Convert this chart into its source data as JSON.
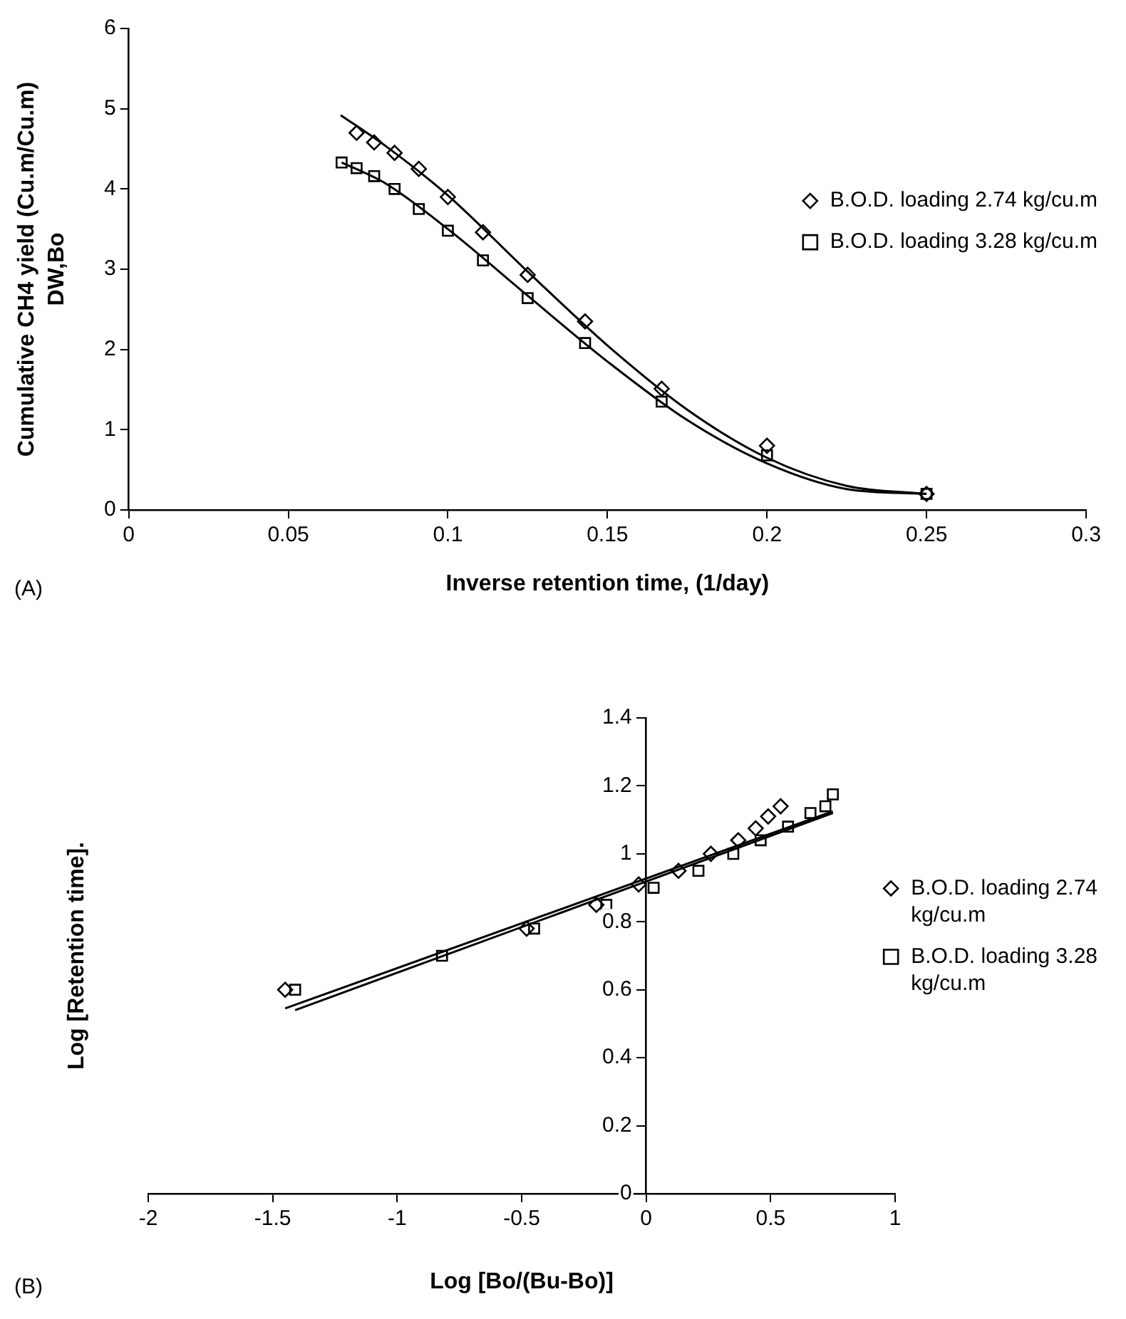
{
  "chart_data": [
    {
      "type": "scatter",
      "xlabel": "Inverse retention time, (1/day)",
      "ylabel": "Cumulative CH4 yield (Cu.m/Cu.m)\nDW,Bo",
      "annotations": [
        "(A)"
      ],
      "xlim": [
        0,
        0.3
      ],
      "xticks": [
        0,
        0.05,
        0.1,
        0.15,
        0.2,
        0.25,
        0.3
      ],
      "ylim": [
        0,
        6
      ],
      "yticks": [
        0,
        1,
        2,
        3,
        4,
        5,
        6
      ],
      "grid": false,
      "legend": "right",
      "series": [
        {
          "name": "B.O.D. loading 2.74 kg/cu.m",
          "marker": "diamond",
          "color": "#000000",
          "x": [
            0.0714,
            0.0769,
            0.0833,
            0.0909,
            0.1,
            0.111,
            0.125,
            0.143,
            0.167,
            0.2,
            0.25
          ],
          "values": [
            4.7,
            4.58,
            4.45,
            4.25,
            3.9,
            3.46,
            2.93,
            2.35,
            1.51,
            0.8,
            0.2
          ]
        },
        {
          "name": "B.O.D. loading 3.28 kg/cu.m",
          "marker": "square",
          "color": "#000000",
          "x": [
            0.0667,
            0.0714,
            0.0769,
            0.0833,
            0.0909,
            0.1,
            0.111,
            0.125,
            0.143,
            0.167,
            0.2,
            0.25
          ],
          "values": [
            4.33,
            4.26,
            4.16,
            4.0,
            3.75,
            3.48,
            3.11,
            2.64,
            2.08,
            1.35,
            0.68,
            0.2
          ]
        },
        {
          "type": "line",
          "marker": "none",
          "color": "#000000",
          "x": [
            0.0664,
            0.08,
            0.1,
            0.125,
            0.15,
            0.175,
            0.2,
            0.225,
            0.25
          ],
          "values": [
            4.92,
            4.55,
            3.92,
            2.97,
            2.05,
            1.25,
            0.65,
            0.3,
            0.2
          ]
        },
        {
          "type": "line",
          "marker": "none",
          "color": "#000000",
          "x": [
            0.0667,
            0.08,
            0.1,
            0.125,
            0.15,
            0.175,
            0.2,
            0.225,
            0.25
          ],
          "values": [
            4.33,
            4.08,
            3.5,
            2.67,
            1.85,
            1.12,
            0.58,
            0.26,
            0.2
          ]
        }
      ]
    },
    {
      "type": "scatter",
      "xlabel": "Log [Bo/(Bu-Bo)]",
      "ylabel": "Log [Retention time].",
      "annotations": [
        "(B)"
      ],
      "xlim": [
        -2,
        1
      ],
      "xticks": [
        -2,
        -1.5,
        -1,
        -0.5,
        0,
        0.5,
        1
      ],
      "ylim": [
        0,
        1.4
      ],
      "yticks": [
        0,
        0.2,
        0.4,
        0.6,
        0.8,
        1,
        1.2,
        1.4
      ],
      "grid": false,
      "legend": "right",
      "series": [
        {
          "name": "B.O.D. loading 2.74 kg/cu.m",
          "marker": "diamond",
          "color": "#000000",
          "x": [
            -1.45,
            -0.48,
            -0.2,
            -0.03,
            0.13,
            0.26,
            0.37,
            0.44,
            0.49,
            0.54
          ],
          "values": [
            0.6,
            0.78,
            0.85,
            0.91,
            0.95,
            1.0,
            1.04,
            1.075,
            1.11,
            1.14
          ]
        },
        {
          "name": "B.O.D. loading 3.28 kg/cu.m",
          "marker": "square",
          "color": "#000000",
          "x": [
            -1.41,
            -0.82,
            -0.45,
            -0.16,
            0.03,
            0.21,
            0.35,
            0.46,
            0.57,
            0.66,
            0.72,
            0.75
          ],
          "values": [
            0.6,
            0.7,
            0.78,
            0.85,
            0.9,
            0.95,
            1.0,
            1.04,
            1.08,
            1.12,
            1.14,
            1.175
          ]
        },
        {
          "type": "line",
          "marker": "none",
          "color": "#000000",
          "x": [
            -1.45,
            0.75
          ],
          "values": [
            0.545,
            1.125
          ]
        },
        {
          "type": "line",
          "marker": "none",
          "color": "#000000",
          "x": [
            -1.41,
            0.75
          ],
          "values": [
            0.54,
            1.12
          ]
        }
      ]
    }
  ]
}
